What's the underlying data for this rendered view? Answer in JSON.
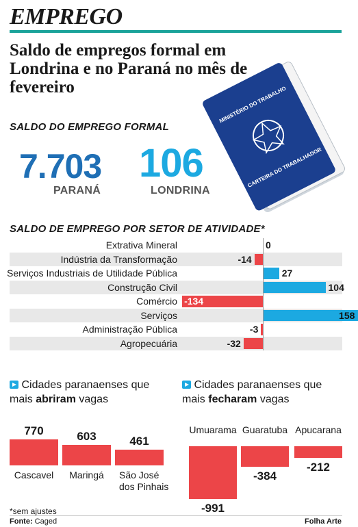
{
  "header": {
    "section": "EMPREGO",
    "headline": "Saldo de empregos formal em Londrina e no Paraná no mês de fevereiro"
  },
  "colors": {
    "teal": "#1aa39a",
    "blue": "#1f6fb5",
    "cyan": "#1ca9e1",
    "red": "#ec4548",
    "stripe": "#e8e8e8",
    "dark_blue": "#1b3f8f"
  },
  "saldo": {
    "kicker": "SALDO DO EMPREGO FORMAL",
    "parana": {
      "value": "7.703",
      "label": "PARANÁ"
    },
    "londrina": {
      "value": "106",
      "label": "LONDRINA"
    }
  },
  "booklet": {
    "icon": "carteira-de-trabalho-icon",
    "top_text": "MINISTÉRIO DO TRABALHO",
    "bottom_text": "CARTEIRA DO TRABALHADOR"
  },
  "chart_data": [
    {
      "type": "bar",
      "title": "SALDO DE EMPREGO POR SETOR DE ATIVIDADE*",
      "categories": [
        "Extrativa Mineral",
        "Indústria da Transformação",
        "Serviços Industriais de Utilidade Pública",
        "Construção Civil",
        "Comércio",
        "Serviços",
        "Administração Pública",
        "Agropecuária"
      ],
      "values": [
        0,
        -14,
        27,
        104,
        -134,
        158,
        -3,
        -32
      ],
      "orientation": "horizontal"
    },
    {
      "type": "bar",
      "title": "Cidades paranaenses que mais abriram vagas",
      "categories": [
        "Cascavel",
        "Maringá",
        "São José dos Pinhais"
      ],
      "values": [
        770,
        603,
        461
      ]
    },
    {
      "type": "bar",
      "title": "Cidades paranaenses que mais fecharam vagas",
      "categories": [
        "Umuarama",
        "Guaratuba",
        "Apucarana"
      ],
      "values": [
        -991,
        -384,
        -212
      ]
    }
  ],
  "labels": {
    "sector_title": "SALDO DE EMPREGO POR SETOR DE ATIVIDADE*",
    "opened": {
      "line1": "Cidades paranaenses que",
      "pre": "mais ",
      "bold": "abriram",
      "post": " vagas"
    },
    "closed": {
      "line1": "Cidades paranaenses que",
      "pre": "mais ",
      "bold": "fecharam",
      "post": " vagas"
    },
    "opened_cities": [
      {
        "name": "Cascavel",
        "value": "770"
      },
      {
        "name": "Maringá",
        "value": "603"
      },
      {
        "name": "São José dos Pinhais",
        "value": "461"
      }
    ],
    "closed_cities": [
      {
        "name": "Umuarama",
        "value": "-991"
      },
      {
        "name": "Guaratuba",
        "value": "-384"
      },
      {
        "name": "Apucarana",
        "value": "-212"
      }
    ]
  },
  "footer": {
    "note": "*sem ajustes",
    "source_label": "Fonte:",
    "source": "Caged",
    "credit": "Folha Arte"
  }
}
